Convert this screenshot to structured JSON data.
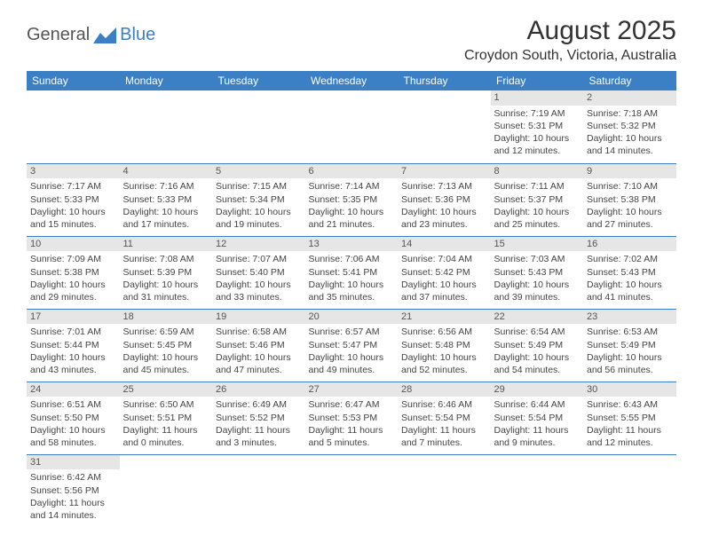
{
  "logo": {
    "general": "General",
    "blue": "Blue"
  },
  "title": "August 2025",
  "location": "Croydon South, Victoria, Australia",
  "colors": {
    "header_bg": "#3b7fc4",
    "header_text": "#ffffff",
    "daynum_bg": "#e6e6e6",
    "border": "#3b7fc4",
    "text": "#333333"
  },
  "weekdays": [
    "Sunday",
    "Monday",
    "Tuesday",
    "Wednesday",
    "Thursday",
    "Friday",
    "Saturday"
  ],
  "weeks": [
    [
      null,
      null,
      null,
      null,
      null,
      {
        "n": "1",
        "sunrise": "Sunrise: 7:19 AM",
        "sunset": "Sunset: 5:31 PM",
        "daylight": "Daylight: 10 hours and 12 minutes."
      },
      {
        "n": "2",
        "sunrise": "Sunrise: 7:18 AM",
        "sunset": "Sunset: 5:32 PM",
        "daylight": "Daylight: 10 hours and 14 minutes."
      }
    ],
    [
      {
        "n": "3",
        "sunrise": "Sunrise: 7:17 AM",
        "sunset": "Sunset: 5:33 PM",
        "daylight": "Daylight: 10 hours and 15 minutes."
      },
      {
        "n": "4",
        "sunrise": "Sunrise: 7:16 AM",
        "sunset": "Sunset: 5:33 PM",
        "daylight": "Daylight: 10 hours and 17 minutes."
      },
      {
        "n": "5",
        "sunrise": "Sunrise: 7:15 AM",
        "sunset": "Sunset: 5:34 PM",
        "daylight": "Daylight: 10 hours and 19 minutes."
      },
      {
        "n": "6",
        "sunrise": "Sunrise: 7:14 AM",
        "sunset": "Sunset: 5:35 PM",
        "daylight": "Daylight: 10 hours and 21 minutes."
      },
      {
        "n": "7",
        "sunrise": "Sunrise: 7:13 AM",
        "sunset": "Sunset: 5:36 PM",
        "daylight": "Daylight: 10 hours and 23 minutes."
      },
      {
        "n": "8",
        "sunrise": "Sunrise: 7:11 AM",
        "sunset": "Sunset: 5:37 PM",
        "daylight": "Daylight: 10 hours and 25 minutes."
      },
      {
        "n": "9",
        "sunrise": "Sunrise: 7:10 AM",
        "sunset": "Sunset: 5:38 PM",
        "daylight": "Daylight: 10 hours and 27 minutes."
      }
    ],
    [
      {
        "n": "10",
        "sunrise": "Sunrise: 7:09 AM",
        "sunset": "Sunset: 5:38 PM",
        "daylight": "Daylight: 10 hours and 29 minutes."
      },
      {
        "n": "11",
        "sunrise": "Sunrise: 7:08 AM",
        "sunset": "Sunset: 5:39 PM",
        "daylight": "Daylight: 10 hours and 31 minutes."
      },
      {
        "n": "12",
        "sunrise": "Sunrise: 7:07 AM",
        "sunset": "Sunset: 5:40 PM",
        "daylight": "Daylight: 10 hours and 33 minutes."
      },
      {
        "n": "13",
        "sunrise": "Sunrise: 7:06 AM",
        "sunset": "Sunset: 5:41 PM",
        "daylight": "Daylight: 10 hours and 35 minutes."
      },
      {
        "n": "14",
        "sunrise": "Sunrise: 7:04 AM",
        "sunset": "Sunset: 5:42 PM",
        "daylight": "Daylight: 10 hours and 37 minutes."
      },
      {
        "n": "15",
        "sunrise": "Sunrise: 7:03 AM",
        "sunset": "Sunset: 5:43 PM",
        "daylight": "Daylight: 10 hours and 39 minutes."
      },
      {
        "n": "16",
        "sunrise": "Sunrise: 7:02 AM",
        "sunset": "Sunset: 5:43 PM",
        "daylight": "Daylight: 10 hours and 41 minutes."
      }
    ],
    [
      {
        "n": "17",
        "sunrise": "Sunrise: 7:01 AM",
        "sunset": "Sunset: 5:44 PM",
        "daylight": "Daylight: 10 hours and 43 minutes."
      },
      {
        "n": "18",
        "sunrise": "Sunrise: 6:59 AM",
        "sunset": "Sunset: 5:45 PM",
        "daylight": "Daylight: 10 hours and 45 minutes."
      },
      {
        "n": "19",
        "sunrise": "Sunrise: 6:58 AM",
        "sunset": "Sunset: 5:46 PM",
        "daylight": "Daylight: 10 hours and 47 minutes."
      },
      {
        "n": "20",
        "sunrise": "Sunrise: 6:57 AM",
        "sunset": "Sunset: 5:47 PM",
        "daylight": "Daylight: 10 hours and 49 minutes."
      },
      {
        "n": "21",
        "sunrise": "Sunrise: 6:56 AM",
        "sunset": "Sunset: 5:48 PM",
        "daylight": "Daylight: 10 hours and 52 minutes."
      },
      {
        "n": "22",
        "sunrise": "Sunrise: 6:54 AM",
        "sunset": "Sunset: 5:49 PM",
        "daylight": "Daylight: 10 hours and 54 minutes."
      },
      {
        "n": "23",
        "sunrise": "Sunrise: 6:53 AM",
        "sunset": "Sunset: 5:49 PM",
        "daylight": "Daylight: 10 hours and 56 minutes."
      }
    ],
    [
      {
        "n": "24",
        "sunrise": "Sunrise: 6:51 AM",
        "sunset": "Sunset: 5:50 PM",
        "daylight": "Daylight: 10 hours and 58 minutes."
      },
      {
        "n": "25",
        "sunrise": "Sunrise: 6:50 AM",
        "sunset": "Sunset: 5:51 PM",
        "daylight": "Daylight: 11 hours and 0 minutes."
      },
      {
        "n": "26",
        "sunrise": "Sunrise: 6:49 AM",
        "sunset": "Sunset: 5:52 PM",
        "daylight": "Daylight: 11 hours and 3 minutes."
      },
      {
        "n": "27",
        "sunrise": "Sunrise: 6:47 AM",
        "sunset": "Sunset: 5:53 PM",
        "daylight": "Daylight: 11 hours and 5 minutes."
      },
      {
        "n": "28",
        "sunrise": "Sunrise: 6:46 AM",
        "sunset": "Sunset: 5:54 PM",
        "daylight": "Daylight: 11 hours and 7 minutes."
      },
      {
        "n": "29",
        "sunrise": "Sunrise: 6:44 AM",
        "sunset": "Sunset: 5:54 PM",
        "daylight": "Daylight: 11 hours and 9 minutes."
      },
      {
        "n": "30",
        "sunrise": "Sunrise: 6:43 AM",
        "sunset": "Sunset: 5:55 PM",
        "daylight": "Daylight: 11 hours and 12 minutes."
      }
    ],
    [
      {
        "n": "31",
        "sunrise": "Sunrise: 6:42 AM",
        "sunset": "Sunset: 5:56 PM",
        "daylight": "Daylight: 11 hours and 14 minutes."
      },
      null,
      null,
      null,
      null,
      null,
      null
    ]
  ]
}
